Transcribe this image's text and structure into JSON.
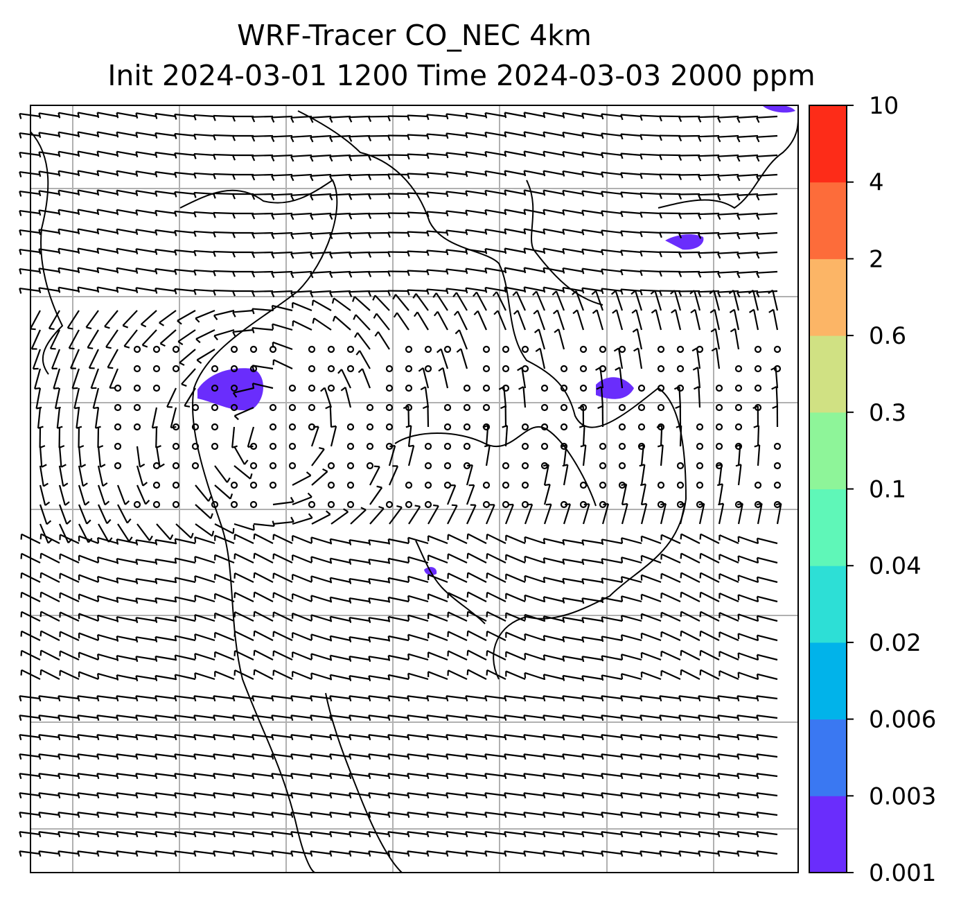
{
  "title": {
    "line1": "WRF-Tracer CO_NEC 4km",
    "line2": "Init 2024-03-01 1200 Time 2024-03-03 2000 ppm"
  },
  "colorbar": {
    "levels": [
      "0.001",
      "0.003",
      "0.006",
      "0.02",
      "0.04",
      "0.1",
      "0.3",
      "0.6",
      "2",
      "4",
      "10"
    ],
    "colors": [
      "#6a2dfc",
      "#3a78f2",
      "#01b3ea",
      "#2ddfd6",
      "#5ff7b8",
      "#8ef599",
      "#d0e183",
      "#fcb566",
      "#fd6c3a",
      "#fd2c18"
    ]
  },
  "map": {
    "barb_color": "#000000",
    "grid_color": "#b0b0b0",
    "tracer_color": "#6a2dfc"
  }
}
